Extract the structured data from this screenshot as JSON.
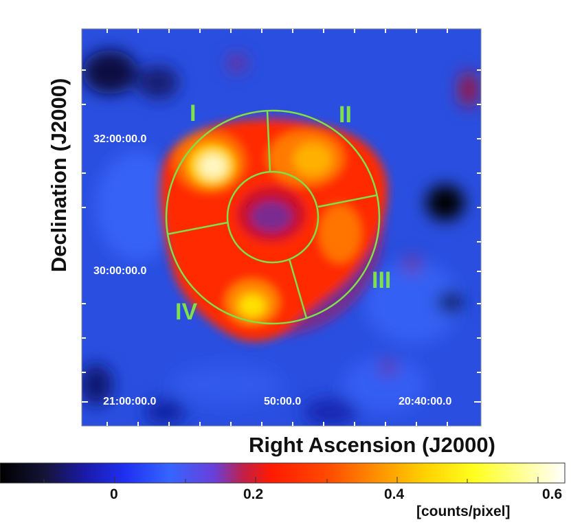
{
  "image": {
    "x_axis_label": "Right Ascension (J2000)",
    "y_axis_label": "Declination (J2000)",
    "x_ticks": [
      "21:00:00.0",
      "50:00.0",
      "20:40:00.0"
    ],
    "y_ticks": [
      "32:00:00.0",
      "30:00:00.0"
    ],
    "regions": [
      "I",
      "II",
      "III",
      "IV"
    ]
  },
  "colorbar": {
    "ticks": [
      "0",
      "0.2",
      "0.4",
      "0.6"
    ],
    "unit_label": "[counts/pixel]"
  },
  "colors": {
    "region_outline": "#7fe04a",
    "background_field": "#2a4fe0",
    "emission_peak": "#fff8c8"
  }
}
